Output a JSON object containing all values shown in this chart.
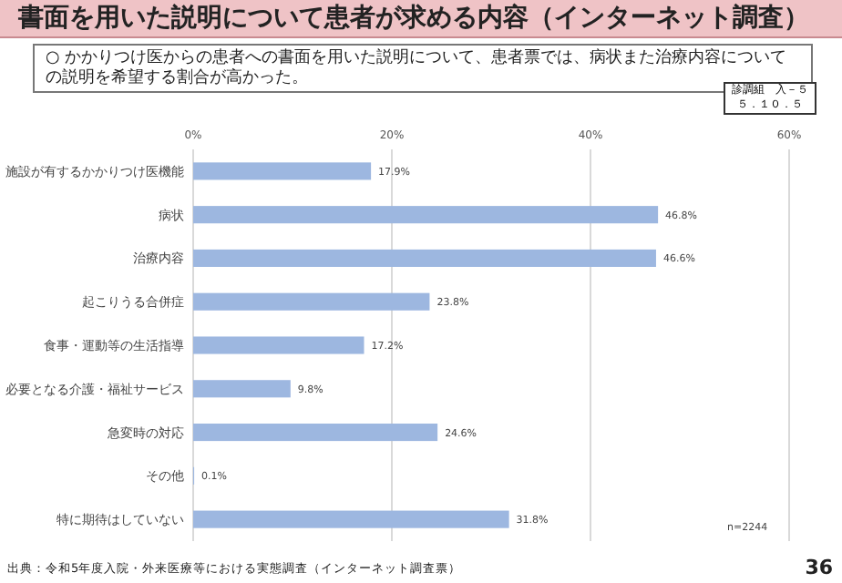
{
  "chart_data": {
    "type": "bar",
    "orientation": "horizontal",
    "title": "書面を用いた説明について患者が求める内容（インターネット調査）",
    "subtitle": "○ かかりつけ医からの患者への書面を用いた説明について、患者票では、病状また治療内容についての説明を希望する割合が高かった。",
    "categories": [
      "施設が有するかかりつけ医機能",
      "病状",
      "治療内容",
      "起こりうる合併症",
      "食事・運動等の生活指導",
      "必要となる介護・福祉サービス",
      "急変時の対応",
      "その他",
      "特に期待はしていない"
    ],
    "values": [
      17.9,
      46.8,
      46.6,
      23.8,
      17.2,
      9.8,
      24.6,
      0.1,
      31.8
    ],
    "value_labels": [
      "17.9%",
      "46.8%",
      "46.6%",
      "23.8%",
      "17.2%",
      "9.8%",
      "24.6%",
      "0.1%",
      "31.8%"
    ],
    "color": "#9db7e0",
    "xlim": [
      0,
      60
    ],
    "xticks": [
      {
        "value": 0,
        "label": "0%"
      },
      {
        "value": 20,
        "label": "20%"
      },
      {
        "value": 40,
        "label": "40%"
      },
      {
        "value": 60,
        "label": "60%"
      }
    ],
    "grid": "x",
    "annotations": [
      "診調組　入－５",
      "５．１０．５",
      "n=2244",
      "出典：令和5年度入院・外来医療等における実態調査（インターネット調査票）",
      "36"
    ]
  }
}
